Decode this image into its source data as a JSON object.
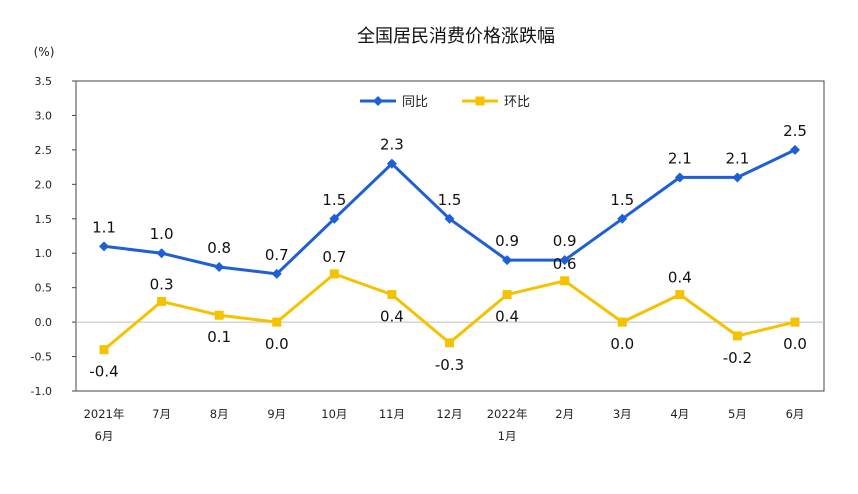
{
  "chart_data": {
    "type": "line",
    "title": "全国居民消费价格涨跌幅",
    "unit_label": "(%)",
    "ylim": [
      -1.0,
      3.5
    ],
    "yticks": [
      "3.5",
      "3.0",
      "2.5",
      "2.0",
      "1.5",
      "1.0",
      "0.5",
      "0.0",
      "-0.5",
      "-1.0"
    ],
    "ytick_values": [
      3.5,
      3.0,
      2.5,
      2.0,
      1.5,
      1.0,
      0.5,
      0.0,
      -0.5,
      -1.0
    ],
    "categories": [
      {
        "line1": "2021年",
        "line2": "6月"
      },
      {
        "line1": "7月",
        "line2": ""
      },
      {
        "line1": "8月",
        "line2": ""
      },
      {
        "line1": "9月",
        "line2": ""
      },
      {
        "line1": "10月",
        "line2": ""
      },
      {
        "line1": "11月",
        "line2": ""
      },
      {
        "line1": "12月",
        "line2": ""
      },
      {
        "line1": "2022年",
        "line2": "1月"
      },
      {
        "line1": "2月",
        "line2": ""
      },
      {
        "line1": "3月",
        "line2": ""
      },
      {
        "line1": "4月",
        "line2": ""
      },
      {
        "line1": "5月",
        "line2": ""
      },
      {
        "line1": "6月",
        "line2": ""
      }
    ],
    "series": [
      {
        "name": "同比",
        "color": "#1f5fd6",
        "marker": "diamond",
        "values": [
          1.1,
          1.0,
          0.8,
          0.7,
          1.5,
          2.3,
          1.5,
          0.9,
          0.9,
          1.5,
          2.1,
          2.1,
          2.5
        ],
        "labels": [
          "1.1",
          "1.0",
          "0.8",
          "0.7",
          "1.5",
          "2.3",
          "1.5",
          "0.9",
          "0.9",
          "1.5",
          "2.1",
          "2.1",
          "2.5"
        ]
      },
      {
        "name": "环比",
        "color": "#f5c200",
        "marker": "square",
        "values": [
          -0.4,
          0.3,
          0.1,
          0.0,
          0.7,
          0.4,
          -0.3,
          0.4,
          0.6,
          0.0,
          0.4,
          -0.2,
          0.0
        ],
        "labels": [
          "-0.4",
          "0.3",
          "0.1",
          "0.0",
          "0.7",
          "0.4",
          "-0.3",
          "0.4",
          "0.6",
          "0.0",
          "0.4",
          "-0.2",
          "0.0"
        ]
      }
    ],
    "legend_position": "top-center",
    "grid": false,
    "zero_line": true
  }
}
